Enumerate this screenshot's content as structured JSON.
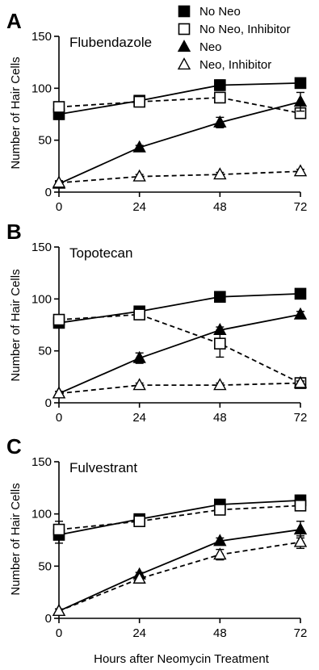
{
  "legend": [
    {
      "label": "No Neo",
      "marker": "square-filled",
      "dash": false
    },
    {
      "label": "No Neo, Inhibitor",
      "marker": "square-open",
      "dash": true
    },
    {
      "label": "Neo",
      "marker": "triangle-filled",
      "dash": false
    },
    {
      "label": "Neo, Inhibitor",
      "marker": "triangle-open",
      "dash": true
    }
  ],
  "chart_data": [
    {
      "type": "line",
      "panel_letter": "A",
      "title": "Flubendazole",
      "ylabel": "Number of Hair Cells",
      "xlabel": "",
      "x": [
        0,
        24,
        48,
        72
      ],
      "xlim": [
        0,
        72
      ],
      "ylim": [
        0,
        150
      ],
      "xticks": [
        0,
        24,
        48,
        72
      ],
      "yticks": [
        0,
        50,
        100,
        150
      ],
      "series": [
        {
          "name": "No Neo",
          "values": [
            75,
            88,
            103,
            105
          ],
          "errors": [
            5,
            3,
            5,
            3
          ]
        },
        {
          "name": "No Neo, Inhibitor",
          "values": [
            82,
            87,
            91,
            76
          ],
          "errors": [
            3,
            3,
            5,
            5
          ]
        },
        {
          "name": "Neo",
          "values": [
            8,
            43,
            67,
            87
          ],
          "errors": [
            2,
            2,
            5,
            9
          ]
        },
        {
          "name": "Neo, Inhibitor",
          "values": [
            9,
            15,
            17,
            20
          ],
          "errors": [
            2,
            2,
            2,
            2
          ]
        }
      ]
    },
    {
      "type": "line",
      "panel_letter": "B",
      "title": "Topotecan",
      "ylabel": "Number of Hair Cells",
      "xlabel": "",
      "x": [
        0,
        24,
        48,
        72
      ],
      "xlim": [
        0,
        72
      ],
      "ylim": [
        0,
        150
      ],
      "xticks": [
        0,
        24,
        48,
        72
      ],
      "yticks": [
        0,
        50,
        100,
        150
      ],
      "series": [
        {
          "name": "No Neo",
          "values": [
            77,
            88,
            102,
            105
          ],
          "errors": [
            5,
            5,
            3,
            3
          ]
        },
        {
          "name": "No Neo, Inhibitor",
          "values": [
            80,
            85,
            57,
            19
          ],
          "errors": [
            4,
            4,
            13,
            3
          ]
        },
        {
          "name": "Neo",
          "values": [
            9,
            43,
            70,
            85
          ],
          "errors": [
            2,
            5,
            3,
            3
          ]
        },
        {
          "name": "Neo, Inhibitor",
          "values": [
            9,
            17,
            17,
            19
          ],
          "errors": [
            2,
            2,
            2,
            2
          ]
        }
      ]
    },
    {
      "type": "line",
      "panel_letter": "C",
      "title": "Fulvestrant",
      "ylabel": "Number of Hair Cells",
      "xlabel": "Hours after Neomycin Treatment",
      "x": [
        0,
        24,
        48,
        72
      ],
      "xlim": [
        0,
        72
      ],
      "ylim": [
        0,
        150
      ],
      "xticks": [
        0,
        24,
        48,
        72
      ],
      "yticks": [
        0,
        50,
        100,
        150
      ],
      "series": [
        {
          "name": "No Neo",
          "values": [
            80,
            95,
            109,
            113
          ],
          "errors": [
            8,
            3,
            3,
            5
          ]
        },
        {
          "name": "No Neo, Inhibitor",
          "values": [
            85,
            93,
            104,
            108
          ],
          "errors": [
            8,
            3,
            3,
            5
          ]
        },
        {
          "name": "Neo",
          "values": [
            7,
            42,
            74,
            85
          ],
          "errors": [
            2,
            2,
            3,
            8
          ]
        },
        {
          "name": "Neo, Inhibitor",
          "values": [
            7,
            38,
            61,
            73
          ],
          "errors": [
            2,
            3,
            5,
            6
          ]
        }
      ]
    }
  ]
}
